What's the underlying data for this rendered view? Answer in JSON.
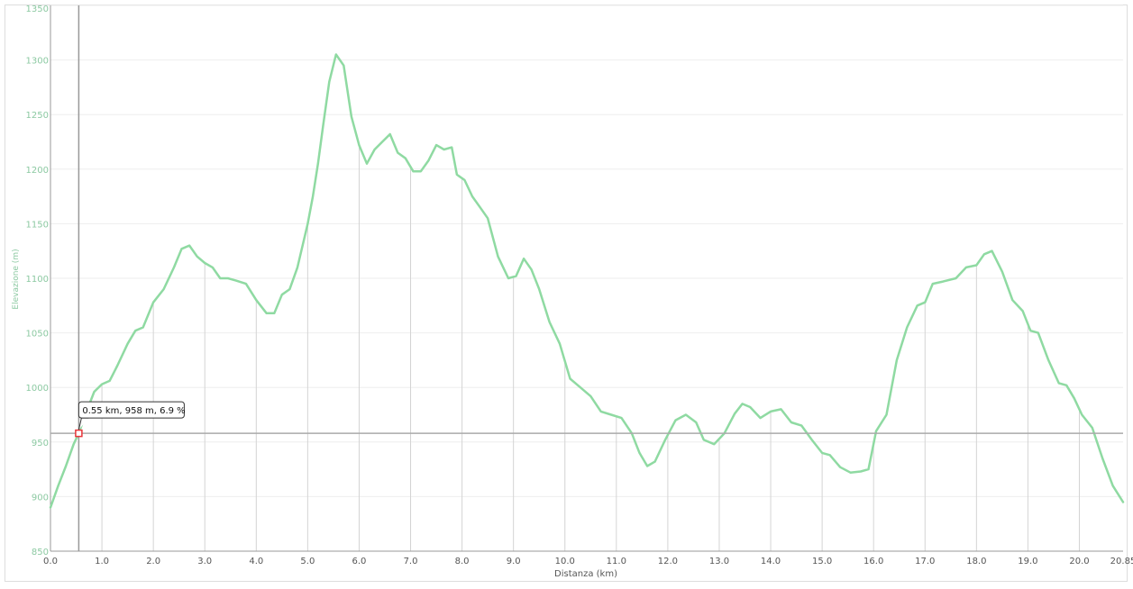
{
  "chart_data": {
    "type": "line",
    "xlabel": "Distanza (km)",
    "ylabel": "Elevazione (m)",
    "xlim": [
      0,
      20.85
    ],
    "ylim": [
      850,
      1350
    ],
    "x_ticks": [
      "0.0",
      "1.0",
      "2.0",
      "3.0",
      "4.0",
      "5.0",
      "6.0",
      "7.0",
      "8.0",
      "9.0",
      "10.0",
      "11.0",
      "12.0",
      "13.0",
      "14.0",
      "15.0",
      "16.0",
      "17.0",
      "18.0",
      "19.0",
      "20.0",
      "20.85"
    ],
    "y_ticks": [
      "850",
      "900",
      "950",
      "1000",
      "1050",
      "1100",
      "1150",
      "1200",
      "1250",
      "1300",
      "1350"
    ],
    "grid": true,
    "line_color": "#8fdaa2",
    "series": [
      {
        "x": [
          0.0,
          0.15,
          0.3,
          0.45,
          0.55,
          0.7,
          0.85,
          1.0,
          1.15,
          1.3,
          1.5,
          1.65,
          1.8,
          2.0,
          2.2,
          2.4,
          2.55,
          2.7,
          2.85,
          3.0,
          3.15,
          3.3,
          3.45,
          3.6,
          3.8,
          4.0,
          4.2,
          4.35,
          4.5,
          4.65,
          4.8,
          5.0,
          5.1,
          5.2,
          5.3,
          5.42,
          5.55,
          5.7,
          5.85,
          6.0,
          6.15,
          6.3,
          6.45,
          6.6,
          6.75,
          6.9,
          7.05,
          7.2,
          7.35,
          7.5,
          7.65,
          7.8,
          7.9,
          8.05,
          8.2,
          8.35,
          8.5,
          8.7,
          8.9,
          9.05,
          9.2,
          9.35,
          9.5,
          9.7,
          9.9,
          10.1,
          10.3,
          10.5,
          10.7,
          10.9,
          11.1,
          11.3,
          11.45,
          11.6,
          11.75,
          11.95,
          12.15,
          12.35,
          12.55,
          12.7,
          12.9,
          13.1,
          13.3,
          13.45,
          13.6,
          13.8,
          14.0,
          14.2,
          14.4,
          14.6,
          14.8,
          15.0,
          15.15,
          15.35,
          15.55,
          15.75,
          15.9,
          16.05,
          16.25,
          16.45,
          16.65,
          16.85,
          17.0,
          17.15,
          17.35,
          17.6,
          17.8,
          18.0,
          18.15,
          18.3,
          18.5,
          18.7,
          18.9,
          19.05,
          19.2,
          19.4,
          19.6,
          19.75,
          19.9,
          20.05,
          20.25,
          20.45,
          20.65,
          20.85
        ],
        "y": [
          890,
          910,
          928,
          948,
          958,
          978,
          996,
          1003,
          1006,
          1020,
          1040,
          1052,
          1055,
          1078,
          1090,
          1110,
          1127,
          1130,
          1120,
          1114,
          1110,
          1100,
          1100,
          1098,
          1095,
          1080,
          1068,
          1068,
          1085,
          1090,
          1110,
          1150,
          1175,
          1205,
          1240,
          1280,
          1305,
          1295,
          1248,
          1222,
          1205,
          1218,
          1225,
          1232,
          1215,
          1210,
          1198,
          1198,
          1208,
          1222,
          1218,
          1220,
          1195,
          1190,
          1175,
          1165,
          1155,
          1120,
          1100,
          1102,
          1118,
          1108,
          1090,
          1060,
          1040,
          1008,
          1000,
          992,
          978,
          975,
          972,
          958,
          940,
          928,
          932,
          952,
          970,
          975,
          968,
          952,
          948,
          958,
          976,
          985,
          982,
          972,
          978,
          980,
          968,
          965,
          952,
          940,
          938,
          927,
          922,
          923,
          925,
          960,
          975,
          1025,
          1055,
          1075,
          1078,
          1095,
          1097,
          1100,
          1110,
          1112,
          1122,
          1125,
          1106,
          1080,
          1070,
          1052,
          1050,
          1025,
          1004,
          1002,
          990,
          975,
          963,
          935,
          910,
          895
        ]
      }
    ],
    "cursor": {
      "x": 0.55,
      "y": 958,
      "label": "0.55 km, 958 m, 6.9 %"
    }
  }
}
